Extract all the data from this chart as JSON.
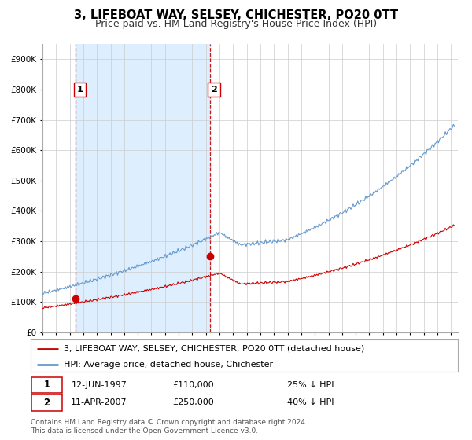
{
  "title": "3, LIFEBOAT WAY, SELSEY, CHICHESTER, PO20 0TT",
  "subtitle": "Price paid vs. HM Land Registry's House Price Index (HPI)",
  "red_line_label": "3, LIFEBOAT WAY, SELSEY, CHICHESTER, PO20 0TT (detached house)",
  "blue_line_label": "HPI: Average price, detached house, Chichester",
  "annotation1_label": "1",
  "annotation1_date": "12-JUN-1997",
  "annotation1_price": "£110,000",
  "annotation1_pct": "25% ↓ HPI",
  "annotation2_label": "2",
  "annotation2_date": "11-APR-2007",
  "annotation2_price": "£250,000",
  "annotation2_pct": "40% ↓ HPI",
  "footnote": "Contains HM Land Registry data © Crown copyright and database right 2024.\nThis data is licensed under the Open Government Licence v3.0.",
  "xlim": [
    1995.0,
    2025.5
  ],
  "ylim": [
    0,
    950000
  ],
  "yticks": [
    0,
    100000,
    200000,
    300000,
    400000,
    500000,
    600000,
    700000,
    800000,
    900000
  ],
  "ytick_labels": [
    "£0",
    "£100K",
    "£200K",
    "£300K",
    "£400K",
    "£500K",
    "£600K",
    "£700K",
    "£800K",
    "£900K"
  ],
  "xticks": [
    1995,
    1996,
    1997,
    1998,
    1999,
    2000,
    2001,
    2002,
    2003,
    2004,
    2005,
    2006,
    2007,
    2008,
    2009,
    2010,
    2011,
    2012,
    2013,
    2014,
    2015,
    2016,
    2017,
    2018,
    2019,
    2020,
    2021,
    2022,
    2023,
    2024,
    2025
  ],
  "purchase1_x": 1997.45,
  "purchase1_y": 110000,
  "purchase2_x": 2007.28,
  "purchase2_y": 250000,
  "red_color": "#cc0000",
  "blue_color": "#6699cc",
  "shaded_color": "#ddeeff",
  "grid_color": "#cccccc",
  "bg_color": "#ffffff",
  "title_fontsize": 10.5,
  "subtitle_fontsize": 9,
  "axis_fontsize": 7.5,
  "legend_fontsize": 8,
  "annotation_fontsize": 8,
  "footnote_fontsize": 6.5
}
